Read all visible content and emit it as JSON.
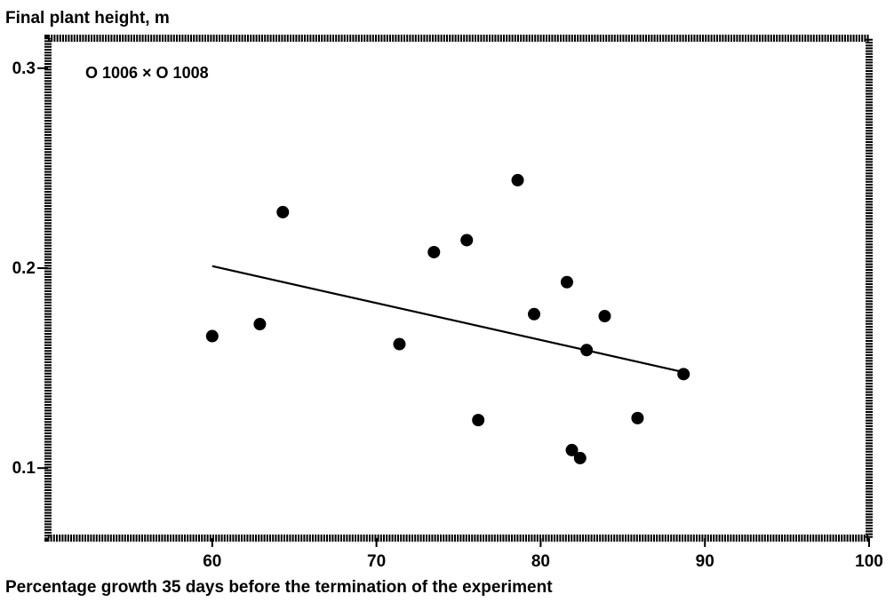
{
  "chart_data": {
    "type": "scatter",
    "title": "O 1006 × O 1008",
    "ylabel": "Final plant height, m",
    "xlabel": "Percentage growth 35 days before the termination of the experiment",
    "xlim": [
      50,
      100
    ],
    "ylim": [
      0.065,
      0.315
    ],
    "x_ticks": [
      60,
      70,
      80,
      90,
      100
    ],
    "y_ticks": [
      0.1,
      0.2,
      0.3
    ],
    "x_tick_labels": [
      "60",
      "70",
      "80",
      "90",
      "100"
    ],
    "y_tick_labels": [
      "0.1",
      "0.2",
      "0.3"
    ],
    "grid": false,
    "legend": "none",
    "points": [
      {
        "x": 60.0,
        "y": 0.166
      },
      {
        "x": 62.9,
        "y": 0.172
      },
      {
        "x": 64.3,
        "y": 0.228
      },
      {
        "x": 71.4,
        "y": 0.162
      },
      {
        "x": 73.5,
        "y": 0.208
      },
      {
        "x": 75.5,
        "y": 0.214
      },
      {
        "x": 76.2,
        "y": 0.124
      },
      {
        "x": 78.6,
        "y": 0.244
      },
      {
        "x": 79.6,
        "y": 0.177
      },
      {
        "x": 81.6,
        "y": 0.193
      },
      {
        "x": 81.9,
        "y": 0.109
      },
      {
        "x": 82.4,
        "y": 0.105
      },
      {
        "x": 82.8,
        "y": 0.159
      },
      {
        "x": 83.9,
        "y": 0.176
      },
      {
        "x": 85.9,
        "y": 0.125
      },
      {
        "x": 88.7,
        "y": 0.147
      }
    ],
    "trendline": {
      "x": [
        60,
        88.7
      ],
      "y": [
        0.201,
        0.148
      ]
    },
    "colors": {
      "marker": "#000000",
      "line": "#000000",
      "frame": "#000000"
    }
  }
}
